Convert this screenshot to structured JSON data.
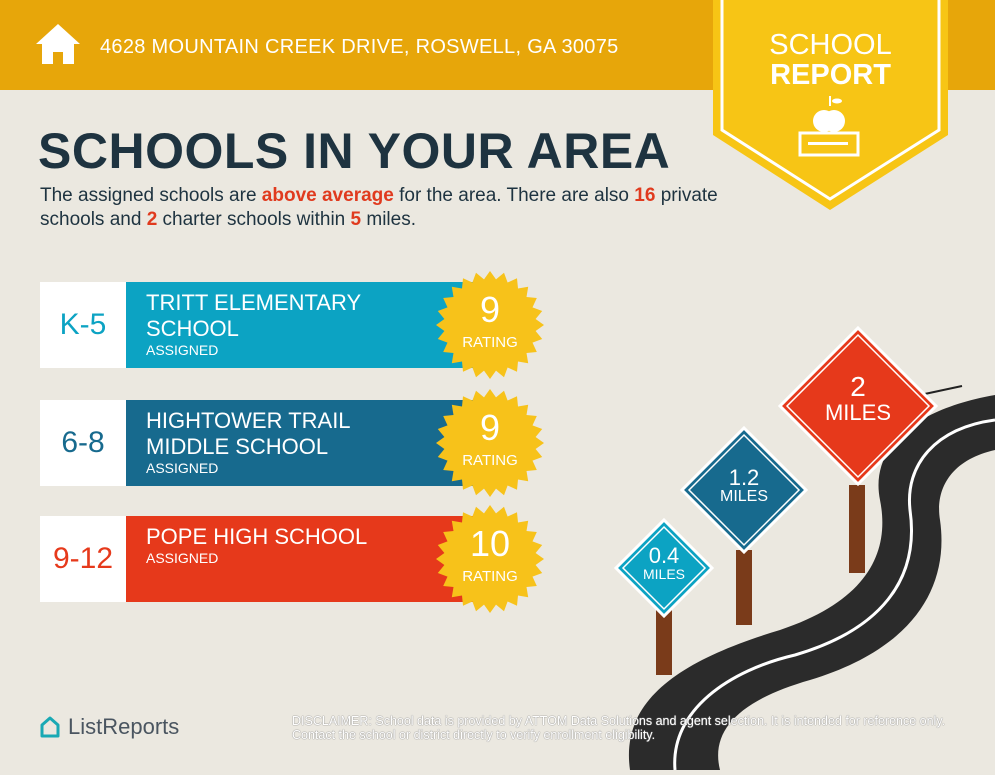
{
  "header": {
    "address": "4628 MOUNTAIN CREEK DRIVE, ROSWELL, GA 30075",
    "icon": "house-icon",
    "color": "#e7a60a"
  },
  "banner": {
    "line1": "SCHOOL",
    "line2": "REPORT",
    "icon": "apple-on-book-icon",
    "color": "#f7c515"
  },
  "title": "SCHOOLS IN YOUR AREA",
  "intro": {
    "p1": "The assigned schools are ",
    "h1": "above average",
    "p2": " for the area. There are also ",
    "h2": "16",
    "p3": " private schools and ",
    "h3": "2",
    "p4": " charter schools within ",
    "h4": "5",
    "p5": " miles."
  },
  "schools": [
    {
      "grade": "K-5",
      "name": "TRITT ELEMENTARY SCHOOL",
      "status": "ASSIGNED",
      "rating": "9",
      "rating_label": "RATING",
      "color": "#0ca3c3"
    },
    {
      "grade": "6-8",
      "name": "HIGHTOWER TRAIL MIDDLE SCHOOL",
      "status": "ASSIGNED",
      "rating": "9",
      "rating_label": "RATING",
      "color": "#176a8e"
    },
    {
      "grade": "9-12",
      "name": "POPE HIGH SCHOOL",
      "status": "ASSIGNED",
      "rating": "10",
      "rating_label": "RATING",
      "color": "#e6391b"
    }
  ],
  "signs": [
    {
      "value": "0.4",
      "unit": "MILES",
      "color": "#0ca3c3"
    },
    {
      "value": "1.2",
      "unit": "MILES",
      "color": "#176a8e"
    },
    {
      "value": "2",
      "unit": "MILES",
      "color": "#e6391b"
    }
  ],
  "footer": {
    "logo": "ListReports",
    "disclaimer_label": "DISCLAIMER:",
    "disclaimer": " School data is provided by ATTOM Data Solutions and agent selection. It is intended for reference only. Contact the school or district directly to verify enrollment eligibility."
  }
}
